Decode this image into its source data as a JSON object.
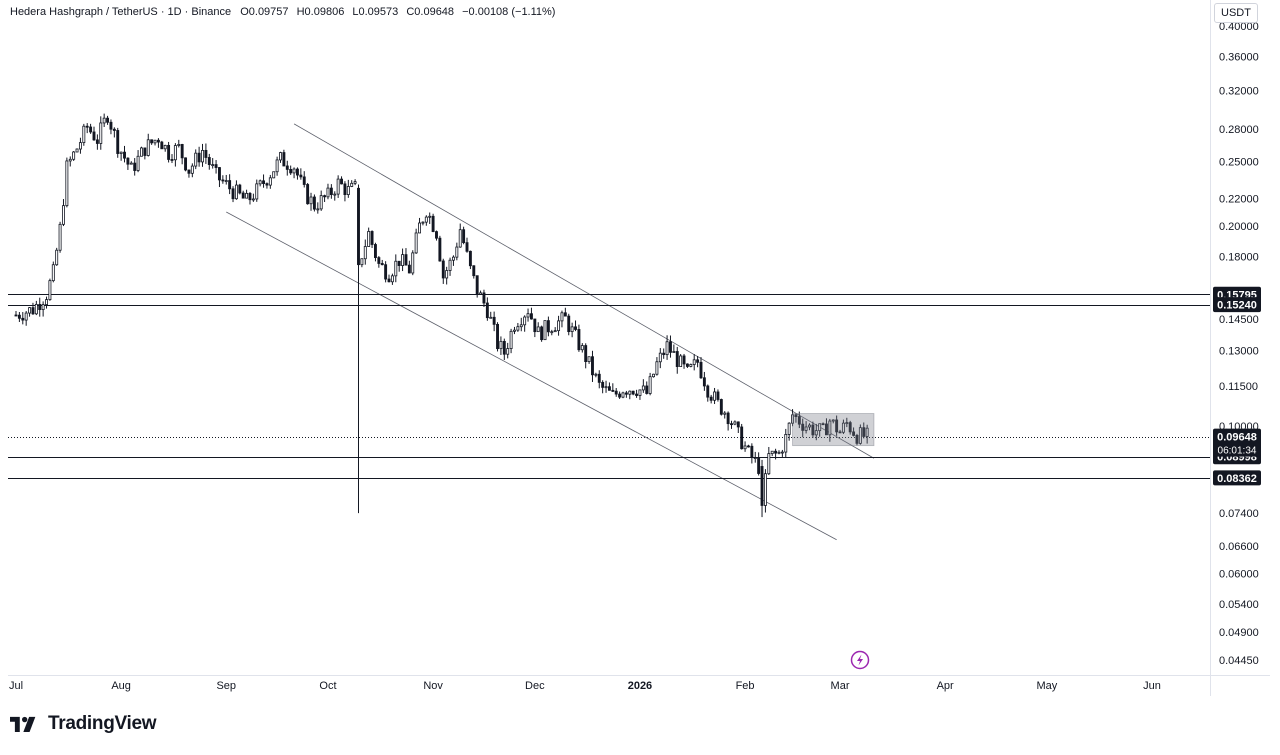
{
  "header": {
    "symbol": "Hedera Hashgraph / TetherUS · 1D · Binance",
    "ohlc": [
      {
        "key": "O",
        "value": "0.09757"
      },
      {
        "key": "H",
        "value": "0.09806"
      },
      {
        "key": "L",
        "value": "0.09573"
      },
      {
        "key": "C",
        "value": "0.09648"
      }
    ],
    "change": "−0.00108 (−1.11%)"
  },
  "currency_button": "USDT",
  "branding": "TradingView",
  "icons": [
    "tradingview-logo-icon",
    "lightning-icon"
  ],
  "colors": {
    "up": "#131722",
    "down": "#131722",
    "grid": "#f0f3fa",
    "drawing": "#131722",
    "label_bg": "#131722"
  },
  "chart_data": {
    "type": "candlestick",
    "title": "",
    "xlabel": "",
    "ylabel": "",
    "y_scale": "log",
    "ylim": [
      0.0425,
      0.41
    ],
    "x_range": [
      "2025-07-01",
      "2026-06-28"
    ],
    "y_ticks": [
      "0.40000",
      "0.36000",
      "0.32000",
      "0.28000",
      "0.25000",
      "0.22000",
      "0.20000",
      "0.18000",
      "0.14500",
      "0.13000",
      "0.11500",
      "0.10000",
      "0.07400",
      "0.06600",
      "0.06000",
      "0.05400",
      "0.04900",
      "0.04450"
    ],
    "x_ticks": [
      {
        "label": "Jul",
        "date": "2025-07-01",
        "bold": false
      },
      {
        "label": "Aug",
        "date": "2025-08-01",
        "bold": false
      },
      {
        "label": "Sep",
        "date": "2025-09-01",
        "bold": false
      },
      {
        "label": "Oct",
        "date": "2025-10-01",
        "bold": false
      },
      {
        "label": "Nov",
        "date": "2025-11-01",
        "bold": false
      },
      {
        "label": "Dec",
        "date": "2025-12-01",
        "bold": false
      },
      {
        "label": "2026",
        "date": "2026-01-01",
        "bold": true
      },
      {
        "label": "Feb",
        "date": "2026-02-01",
        "bold": false
      },
      {
        "label": "Mar",
        "date": "2026-03-01",
        "bold": false
      },
      {
        "label": "Apr",
        "date": "2026-04-01",
        "bold": false
      },
      {
        "label": "May",
        "date": "2026-05-01",
        "bold": false
      },
      {
        "label": "Jun",
        "date": "2026-06-01",
        "bold": false
      }
    ],
    "price_path": [
      [
        "2025-07-01",
        0.147
      ],
      [
        "2025-07-06",
        0.15
      ],
      [
        "2025-07-10",
        0.158
      ],
      [
        "2025-07-12",
        0.17
      ],
      [
        "2025-07-14",
        0.198
      ],
      [
        "2025-07-16",
        0.245
      ],
      [
        "2025-07-19",
        0.262
      ],
      [
        "2025-07-22",
        0.282
      ],
      [
        "2025-07-25",
        0.27
      ],
      [
        "2025-07-28",
        0.295
      ],
      [
        "2025-07-31",
        0.265
      ],
      [
        "2025-08-04",
        0.243
      ],
      [
        "2025-08-08",
        0.262
      ],
      [
        "2025-08-12",
        0.272
      ],
      [
        "2025-08-15",
        0.258
      ],
      [
        "2025-08-18",
        0.262
      ],
      [
        "2025-08-21",
        0.243
      ],
      [
        "2025-08-25",
        0.26
      ],
      [
        "2025-08-29",
        0.238
      ],
      [
        "2025-09-03",
        0.226
      ],
      [
        "2025-09-07",
        0.218
      ],
      [
        "2025-09-10",
        0.226
      ],
      [
        "2025-09-14",
        0.24
      ],
      [
        "2025-09-17",
        0.252
      ],
      [
        "2025-09-21",
        0.246
      ],
      [
        "2025-09-24",
        0.225
      ],
      [
        "2025-09-27",
        0.215
      ],
      [
        "2025-10-01",
        0.222
      ],
      [
        "2025-10-04",
        0.232
      ],
      [
        "2025-10-07",
        0.226
      ],
      [
        "2025-10-09",
        0.228
      ],
      [
        "2025-10-10",
        0.175
      ],
      [
        "2025-10-13",
        0.195
      ],
      [
        "2025-10-16",
        0.175
      ],
      [
        "2025-10-19",
        0.17
      ],
      [
        "2025-10-22",
        0.178
      ],
      [
        "2025-10-25",
        0.172
      ],
      [
        "2025-10-28",
        0.2
      ],
      [
        "2025-10-30",
        0.212
      ],
      [
        "2025-11-02",
        0.196
      ],
      [
        "2025-11-04",
        0.168
      ],
      [
        "2025-11-07",
        0.18
      ],
      [
        "2025-11-09",
        0.198
      ],
      [
        "2025-11-12",
        0.172
      ],
      [
        "2025-11-14",
        0.16
      ],
      [
        "2025-11-17",
        0.15
      ],
      [
        "2025-11-20",
        0.133
      ],
      [
        "2025-11-22",
        0.129
      ],
      [
        "2025-11-25",
        0.143
      ],
      [
        "2025-11-29",
        0.15
      ],
      [
        "2025-12-02",
        0.138
      ],
      [
        "2025-12-06",
        0.142
      ],
      [
        "2025-12-10",
        0.145
      ],
      [
        "2025-12-13",
        0.136
      ],
      [
        "2025-12-16",
        0.127
      ],
      [
        "2025-12-20",
        0.115
      ],
      [
        "2025-12-24",
        0.111
      ],
      [
        "2025-12-27",
        0.114
      ],
      [
        "2025-12-31",
        0.114
      ],
      [
        "2026-01-03",
        0.112
      ],
      [
        "2026-01-06",
        0.124
      ],
      [
        "2026-01-09",
        0.132
      ],
      [
        "2026-01-12",
        0.126
      ],
      [
        "2026-01-15",
        0.12
      ],
      [
        "2026-01-18",
        0.125
      ],
      [
        "2026-01-21",
        0.114
      ],
      [
        "2026-01-24",
        0.108
      ],
      [
        "2026-01-27",
        0.104
      ],
      [
        "2026-01-30",
        0.097
      ],
      [
        "2026-02-02",
        0.091
      ],
      [
        "2026-02-05",
        0.087
      ],
      [
        "2026-02-06",
        0.076
      ],
      [
        "2026-02-08",
        0.09
      ],
      [
        "2026-02-11",
        0.091
      ],
      [
        "2026-02-13",
        0.096
      ],
      [
        "2026-02-15",
        0.104
      ],
      [
        "2026-02-18",
        0.101
      ],
      [
        "2026-02-21",
        0.099
      ],
      [
        "2026-02-24",
        0.098
      ],
      [
        "2026-02-26",
        0.102
      ],
      [
        "2026-03-01",
        0.098
      ],
      [
        "2026-03-03",
        0.101
      ],
      [
        "2026-03-06",
        0.097
      ],
      [
        "2026-03-09",
        0.0965
      ]
    ],
    "candle_count": 251,
    "spike_candles": [
      {
        "date": "2025-10-10",
        "open": 0.228,
        "high": 0.231,
        "low": 0.074,
        "close": 0.175
      },
      {
        "date": "2026-02-06",
        "open": 0.087,
        "high": 0.089,
        "low": 0.073,
        "close": 0.076
      }
    ],
    "horizontal_levels": [
      {
        "value": 0.15795,
        "label": "0.15795",
        "style": "solid"
      },
      {
        "value": 0.1524,
        "label": "0.15240",
        "style": "solid"
      },
      {
        "value": 0.08998,
        "label": "0.08998",
        "style": "solid"
      },
      {
        "value": 0.08362,
        "label": "0.08362",
        "style": "solid"
      }
    ],
    "current_price": {
      "value": 0.09648,
      "label": "0.09648",
      "countdown": "06:01:34",
      "style": "dotted"
    },
    "trendlines": [
      {
        "name": "channel-upper",
        "from": [
          "2025-09-21",
          0.285
        ],
        "to": [
          "2026-03-11",
          0.0895
        ]
      },
      {
        "name": "channel-lower",
        "from": [
          "2025-09-01",
          0.21
        ],
        "to": [
          "2026-02-28",
          0.0675
        ]
      }
    ],
    "range_box": {
      "from": "2026-02-15",
      "to": "2026-03-11",
      "low": 0.0935,
      "high": 0.1045
    },
    "grid": false,
    "legend": "none"
  }
}
